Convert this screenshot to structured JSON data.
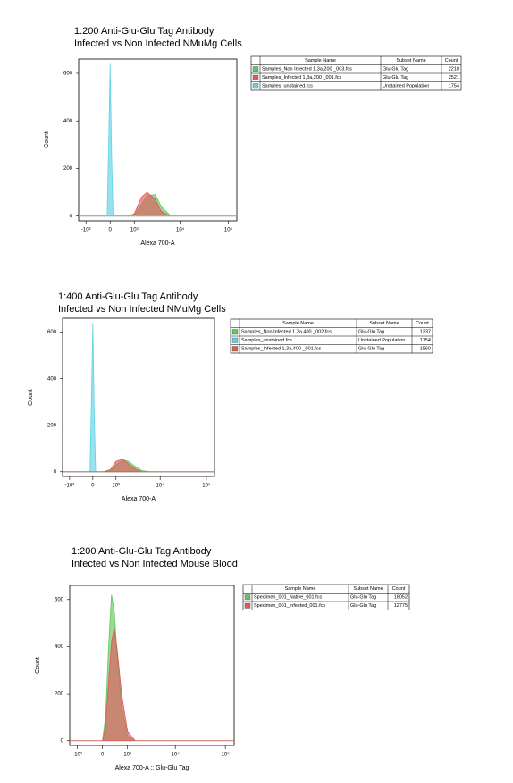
{
  "chart_data": [
    {
      "type": "area",
      "title": "1:200 Anti-Glu-Glu Tag Antibody",
      "subtitle": "Infected vs Non Infected NMuMg Cells",
      "x_label": "Alexa 700-A",
      "y_label": "Count",
      "xscale": "biexponential",
      "xlim": [
        -1500,
        150000
      ],
      "ylim": [
        -20,
        660
      ],
      "yticks": [
        0,
        200,
        400,
        600
      ],
      "xticks": [
        {
          "value": -1000,
          "label": "-10³"
        },
        0,
        {
          "value": 1000,
          "label": "10³"
        },
        {
          "value": 10000,
          "label": "10⁴"
        },
        {
          "value": 100000,
          "label": "10⁵"
        }
      ],
      "table_headers": [
        "Sample Name",
        "Subset Name",
        "Count"
      ],
      "x": [
        -1500,
        -500,
        -100,
        -50,
        0,
        50,
        100,
        400,
        700,
        1000,
        1500,
        2000,
        3000,
        4000,
        6000,
        10000,
        150000
      ],
      "series": [
        {
          "name": "Samples_Non Infected 1,3a,200 _003.fcs",
          "subset": "Glu-Glu Tag",
          "count": 2218,
          "color": "#5fc85f",
          "values": [
            0,
            0,
            0,
            0,
            0,
            0,
            0,
            0,
            0,
            5,
            50,
            85,
            90,
            40,
            5,
            0,
            0
          ]
        },
        {
          "name": "Samples_Infected 1,3a,200 _001.fcs",
          "subset": "Glu-Glu Tag",
          "count": 2521,
          "color": "#e05a5a",
          "values": [
            0,
            0,
            0,
            0,
            0,
            0,
            0,
            0,
            0,
            10,
            80,
            100,
            70,
            20,
            0,
            0,
            0
          ]
        },
        {
          "name": "Samples_unstained.fcs",
          "subset": "Unstained Population",
          "count": 1754,
          "color": "#5fd3e3",
          "values": [
            0,
            0,
            0,
            300,
            640,
            250,
            0,
            0,
            0,
            0,
            0,
            0,
            0,
            0,
            0,
            0,
            0
          ]
        }
      ]
    },
    {
      "type": "area",
      "title": "1:400 Anti-Glu-Glu Tag Antibody",
      "subtitle": "Infected vs Non Infected NMuMg Cells",
      "x_label": "Alexa 700-A",
      "y_label": "Count",
      "xscale": "biexponential",
      "xlim": [
        -1500,
        150000
      ],
      "ylim": [
        -20,
        660
      ],
      "yticks": [
        0,
        200,
        400,
        600
      ],
      "xticks": [
        {
          "value": -1000,
          "label": "-10³"
        },
        0,
        {
          "value": 1000,
          "label": "10³"
        },
        {
          "value": 10000,
          "label": "10⁴"
        },
        {
          "value": 100000,
          "label": "10⁵"
        }
      ],
      "table_headers": [
        "Sample Name",
        "Subset Name",
        "Count"
      ],
      "x": [
        -1500,
        -500,
        -100,
        -50,
        0,
        50,
        100,
        400,
        700,
        1000,
        1500,
        2000,
        3000,
        4000,
        6000,
        10000,
        150000
      ],
      "series": [
        {
          "name": "Samples_Non Infected 1,3a,400 _002.fcs",
          "subset": "Glu-Glu Tag",
          "count": 1337,
          "color": "#5fc85f",
          "values": [
            0,
            0,
            0,
            0,
            0,
            0,
            0,
            0,
            5,
            30,
            50,
            45,
            20,
            5,
            0,
            0,
            0
          ]
        },
        {
          "name": "Samples_unstained.fcs",
          "subset": "Unstained Population",
          "count": 1754,
          "color": "#5fd3e3",
          "values": [
            0,
            0,
            0,
            300,
            640,
            250,
            0,
            0,
            0,
            0,
            0,
            0,
            0,
            0,
            0,
            0,
            0
          ]
        },
        {
          "name": "Samples_Infected 1,3a,400 _001.fcs",
          "subset": "Glu-Glu Tag",
          "count": 1560,
          "color": "#e05a5a",
          "values": [
            0,
            0,
            0,
            0,
            0,
            0,
            0,
            0,
            10,
            45,
            55,
            35,
            10,
            0,
            0,
            0,
            0
          ]
        }
      ]
    },
    {
      "type": "area",
      "title": "1:200 Anti-Glu-Glu Tag Antibody",
      "subtitle": "Infected vs Non Infected Mouse Blood",
      "x_label": "Alexa 700-A :: Glu-Glu Tag",
      "y_label": "Count",
      "xscale": "biexponential",
      "xlim": [
        -1500,
        150000
      ],
      "ylim": [
        -20,
        660
      ],
      "yticks": [
        0,
        200,
        400,
        600
      ],
      "xticks": [
        {
          "value": -1000,
          "label": "-10³"
        },
        0,
        {
          "value": 1000,
          "label": "10³"
        },
        {
          "value": 10000,
          "label": "10⁴"
        },
        {
          "value": 100000,
          "label": "10⁵"
        }
      ],
      "table_headers": [
        "Sample Name",
        "Subset Name",
        "Count"
      ],
      "x": [
        -1500,
        -500,
        -100,
        0,
        100,
        200,
        300,
        400,
        500,
        700,
        1000,
        1500,
        3000,
        10000,
        150000
      ],
      "series": [
        {
          "name": "Specimen_001_Native_001.fcs",
          "subset": "Glu-Glu Tag",
          "count": 16052,
          "color": "#5fc85f",
          "values": [
            0,
            0,
            0,
            0,
            100,
            400,
            620,
            550,
            380,
            150,
            20,
            0,
            0,
            0,
            0
          ]
        },
        {
          "name": "Specimen_001_Infected_001.fcs",
          "subset": "Glu-Glu Tag",
          "count": 12775,
          "color": "#e05a5a",
          "values": [
            0,
            0,
            0,
            0,
            60,
            250,
            420,
            480,
            400,
            200,
            40,
            0,
            0,
            0,
            0
          ]
        }
      ]
    }
  ]
}
